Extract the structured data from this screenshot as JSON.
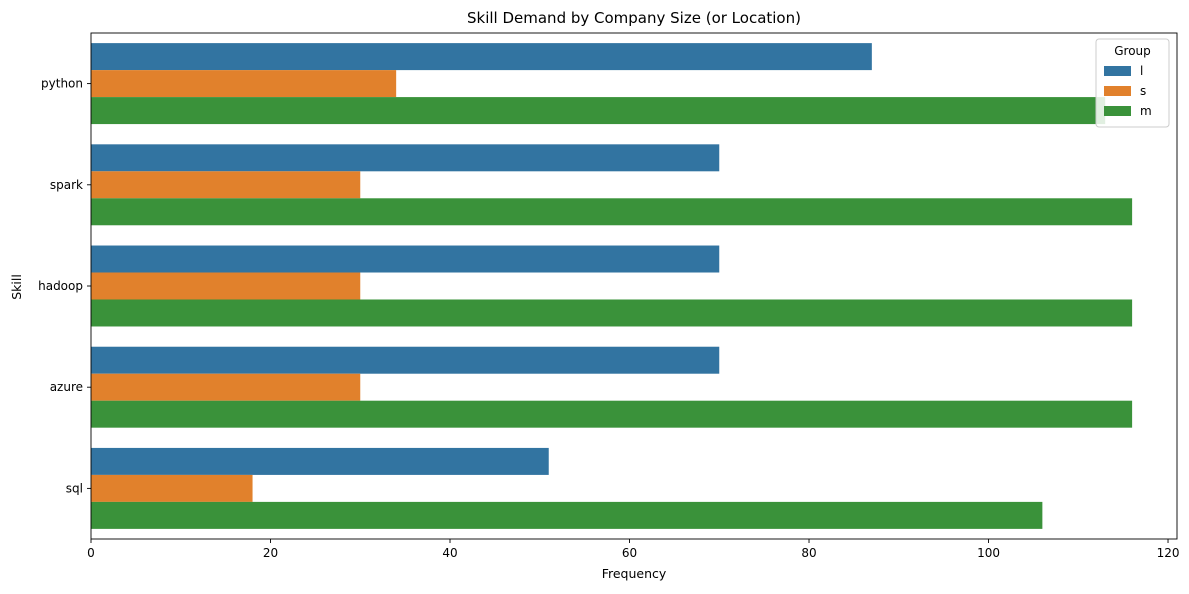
{
  "chart_data": {
    "type": "bar",
    "orientation": "horizontal",
    "title": "Skill Demand by Company Size (or Location)",
    "xlabel": "Frequency",
    "ylabel": "Skill",
    "xlim": [
      0,
      121
    ],
    "xticks": [
      0,
      20,
      40,
      60,
      80,
      100,
      120
    ],
    "grid": false,
    "categories": [
      "python",
      "spark",
      "hadoop",
      "azure",
      "sql"
    ],
    "legend": {
      "title": "Group",
      "position": "top-right"
    },
    "series": [
      {
        "name": "l",
        "color": "#3274a1",
        "values": [
          87,
          70,
          70,
          70,
          51
        ]
      },
      {
        "name": "s",
        "color": "#e1812c",
        "values": [
          34,
          30,
          30,
          30,
          18
        ]
      },
      {
        "name": "m",
        "color": "#3a923a",
        "values": [
          113,
          116,
          116,
          116,
          106
        ]
      }
    ]
  }
}
